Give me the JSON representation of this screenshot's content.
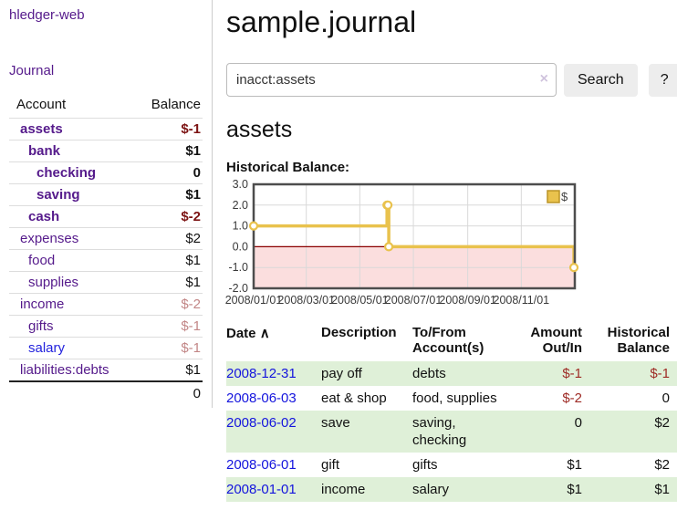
{
  "app": {
    "brand": "hledger-web",
    "nav_journal": "Journal"
  },
  "colors": {
    "link_purple": "#551a8b",
    "link_blue": "#1414dd",
    "negative_strong": "#7c1313",
    "negative_soft": "#c28686",
    "negative_table": "#9e2b25",
    "row_shade_green": "#dff0d8",
    "chart_gold": "#e9c24d",
    "chart_negative_fill": "#fbdede",
    "chart_zero_line": "#8b0000"
  },
  "sidebar": {
    "table_headers": {
      "account": "Account",
      "balance": "Balance"
    },
    "accounts": [
      {
        "name": "assets",
        "balance": "$-1",
        "level": 1,
        "bold": true,
        "neg": "strong"
      },
      {
        "name": "bank",
        "balance": "$1",
        "level": 2,
        "bold": true,
        "neg": null
      },
      {
        "name": "checking",
        "balance": "0",
        "level": 3,
        "bold": true,
        "neg": null
      },
      {
        "name": "saving",
        "balance": "$1",
        "level": 3,
        "bold": true,
        "neg": null
      },
      {
        "name": "cash",
        "balance": "$-2",
        "level": 2,
        "bold": true,
        "neg": "strong"
      },
      {
        "name": "expenses",
        "balance": "$2",
        "level": 1,
        "bold": false,
        "neg": null
      },
      {
        "name": "food",
        "balance": "$1",
        "level": 2,
        "bold": false,
        "neg": null
      },
      {
        "name": "supplies",
        "balance": "$1",
        "level": 2,
        "bold": false,
        "neg": null
      },
      {
        "name": "income",
        "balance": "$-2",
        "level": 1,
        "bold": false,
        "neg": "soft"
      },
      {
        "name": "gifts",
        "balance": "$-1",
        "level": 2,
        "bold": false,
        "neg": "soft"
      },
      {
        "name": "salary",
        "balance": "$-1",
        "level": 2,
        "bold": false,
        "neg": "soft",
        "link_color": "blue"
      },
      {
        "name": "liabilities:debts",
        "balance": "$1",
        "level": 1,
        "bold": false,
        "neg": null
      }
    ],
    "total": "0"
  },
  "header": {
    "title": "sample.journal"
  },
  "search": {
    "value": "inacct:assets",
    "clear_icon": "×",
    "button_label": "Search",
    "help_label": "?"
  },
  "account_page": {
    "heading": "assets",
    "chart_label": "Historical Balance:"
  },
  "chart_data": {
    "type": "line",
    "step": true,
    "title": "Historical Balance:",
    "x_domain": [
      "2008-01-01",
      "2009-01-01"
    ],
    "ylim": [
      -2,
      3
    ],
    "yticks": [
      {
        "v": 3,
        "label": "3.0"
      },
      {
        "v": 2,
        "label": "2.0"
      },
      {
        "v": 1,
        "label": "1.0"
      },
      {
        "v": 0,
        "label": "0.0"
      },
      {
        "v": -1,
        "label": "-1.0"
      },
      {
        "v": -2,
        "label": "-2.0"
      }
    ],
    "xticks": [
      {
        "date": "2008-01-01",
        "label": "2008/01/01"
      },
      {
        "date": "2008-03-01",
        "label": "2008/03/01"
      },
      {
        "date": "2008-05-01",
        "label": "2008/05/01"
      },
      {
        "date": "2008-07-01",
        "label": "2008/07/01"
      },
      {
        "date": "2008-09-01",
        "label": "2008/09/01"
      },
      {
        "date": "2008-11-01",
        "label": "2008/11/01"
      }
    ],
    "series": [
      {
        "name": "$",
        "color": "#e9c24d",
        "points": [
          [
            "2008-01-01",
            1
          ],
          [
            "2008-06-01",
            2
          ],
          [
            "2008-06-02",
            2
          ],
          [
            "2008-06-03",
            0
          ],
          [
            "2008-12-31",
            -1
          ]
        ]
      }
    ],
    "legend": {
      "label": "$",
      "position": "top-right"
    },
    "grid": true,
    "negative_region_fill": "#fbdede",
    "zero_line_color": "#8b0000"
  },
  "register": {
    "columns": {
      "date": "Date",
      "sort_icon": "∧",
      "description": "Description",
      "tofrom": "To/From Account(s)",
      "amount": "Amount Out/In",
      "balance": "Historical Balance"
    },
    "rows": [
      {
        "date": "2008-12-31",
        "description": "pay off",
        "accounts": "debts",
        "amount": "$-1",
        "amount_neg": true,
        "balance": "$-1",
        "balance_neg": true,
        "shade": true
      },
      {
        "date": "2008-06-03",
        "description": "eat & shop",
        "accounts": "food, supplies",
        "amount": "$-2",
        "amount_neg": true,
        "balance": "0",
        "balance_neg": false,
        "shade": false
      },
      {
        "date": "2008-06-02",
        "description": "save",
        "accounts": "saving, checking",
        "amount": "0",
        "amount_neg": false,
        "balance": "$2",
        "balance_neg": false,
        "shade": true
      },
      {
        "date": "2008-06-01",
        "description": "gift",
        "accounts": "gifts",
        "amount": "$1",
        "amount_neg": false,
        "balance": "$2",
        "balance_neg": false,
        "shade": false
      },
      {
        "date": "2008-01-01",
        "description": "income",
        "accounts": "salary",
        "amount": "$1",
        "amount_neg": false,
        "balance": "$1",
        "balance_neg": false,
        "shade": true
      }
    ]
  }
}
